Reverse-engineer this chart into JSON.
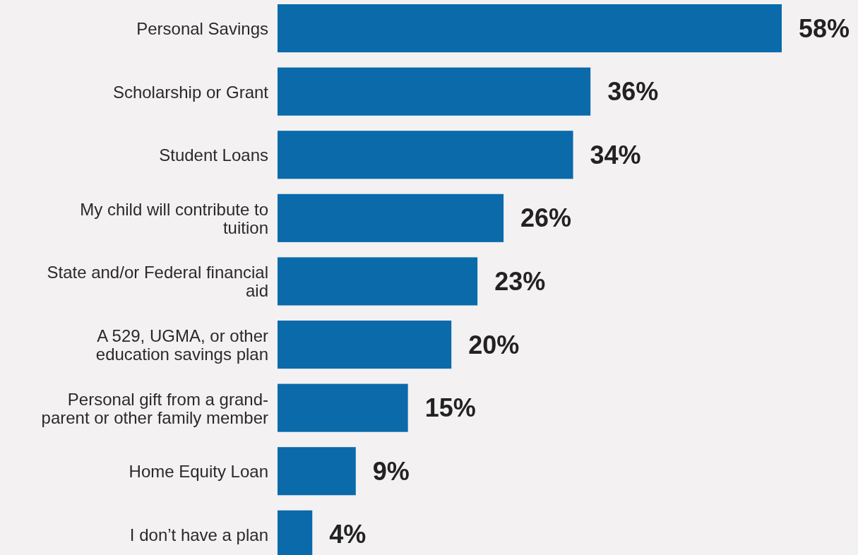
{
  "chart_data": {
    "type": "bar",
    "orientation": "horizontal",
    "categories": [
      "Personal Savings",
      "Scholarship or Grant",
      "Student Loans",
      "My child will contribute to tuition",
      "State and/or Federal financial aid",
      "A 529, UGMA, or other education savings plan",
      "Personal gift from a grand-parent or other family member",
      "Home Equity Loan",
      "I don’t have a plan"
    ],
    "values": [
      58,
      36,
      34,
      26,
      23,
      20,
      15,
      9,
      4
    ],
    "value_labels": [
      "58%",
      "36%",
      "34%",
      "26%",
      "23%",
      "20%",
      "15%",
      "9%",
      "4%"
    ],
    "color": "#0a6aaa"
  }
}
